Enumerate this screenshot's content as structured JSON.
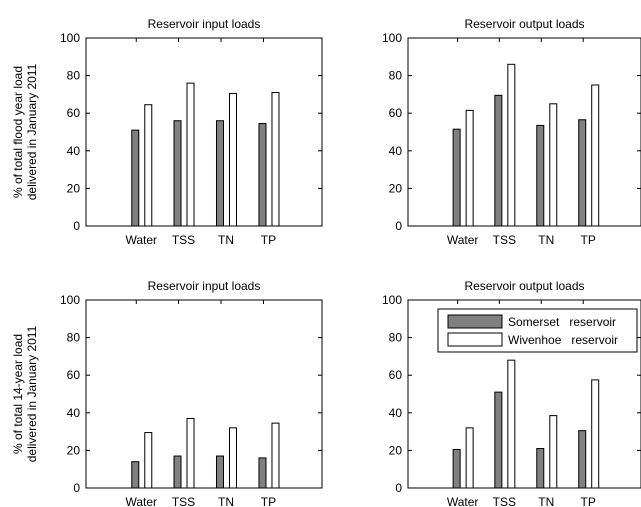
{
  "figure": {
    "row_ylabels": [
      [
        "% of total flood year load",
        "delivered in January 2011"
      ],
      [
        "% of total 14-year load",
        "delivered in January 2011"
      ]
    ]
  },
  "legend": {
    "items": [
      {
        "label": "Somerset   reservoir",
        "color": "#808080"
      },
      {
        "label": "Wivenhoe   reservoir",
        "color": "#ffffff"
      }
    ],
    "placement": "top-right of bottom-right panel"
  },
  "chart_data": [
    {
      "type": "bar",
      "title": "Reservoir input loads",
      "categories": [
        "Water",
        "TSS",
        "TN",
        "TP"
      ],
      "series": [
        {
          "name": "Somerset   reservoir",
          "values": [
            51,
            56,
            56,
            54.5
          ],
          "color": "#808080"
        },
        {
          "name": "Wivenhoe   reservoir",
          "values": [
            64.5,
            76,
            70.5,
            71
          ],
          "color": "#ffffff"
        }
      ],
      "ylim": [
        0,
        100
      ],
      "yticks": [
        "0",
        "20",
        "40",
        "60",
        "80",
        "100"
      ],
      "grid": false
    },
    {
      "type": "bar",
      "title": "Reservoir output loads",
      "categories": [
        "Water",
        "TSS",
        "TN",
        "TP"
      ],
      "series": [
        {
          "name": "Somerset   reservoir",
          "values": [
            51.5,
            69.5,
            53.5,
            56.5
          ],
          "color": "#808080"
        },
        {
          "name": "Wivenhoe   reservoir",
          "values": [
            61.5,
            86,
            65,
            75
          ],
          "color": "#ffffff"
        }
      ],
      "ylim": [
        0,
        100
      ],
      "yticks": [
        "0",
        "20",
        "40",
        "60",
        "80",
        "100"
      ],
      "grid": false
    },
    {
      "type": "bar",
      "title": "Reservoir input loads",
      "categories": [
        "Water",
        "TSS",
        "TN",
        "TP"
      ],
      "series": [
        {
          "name": "Somerset   reservoir",
          "values": [
            14,
            17,
            17,
            16
          ],
          "color": "#808080"
        },
        {
          "name": "Wivenhoe   reservoir",
          "values": [
            29.5,
            37,
            32,
            34.5
          ],
          "color": "#ffffff"
        }
      ],
      "ylim": [
        0,
        100
      ],
      "yticks": [
        "0",
        "20",
        "40",
        "60",
        "80",
        "100"
      ],
      "grid": false
    },
    {
      "type": "bar",
      "title": "Reservoir output loads",
      "categories": [
        "Water",
        "TSS",
        "TN",
        "TP"
      ],
      "series": [
        {
          "name": "Somerset   reservoir",
          "values": [
            20.5,
            51,
            21,
            30.5
          ],
          "color": "#808080"
        },
        {
          "name": "Wivenhoe   reservoir",
          "values": [
            32,
            68,
            38.5,
            57.5
          ],
          "color": "#ffffff"
        }
      ],
      "ylim": [
        0,
        100
      ],
      "yticks": [
        "0",
        "20",
        "40",
        "60",
        "80",
        "100"
      ],
      "grid": false
    }
  ]
}
